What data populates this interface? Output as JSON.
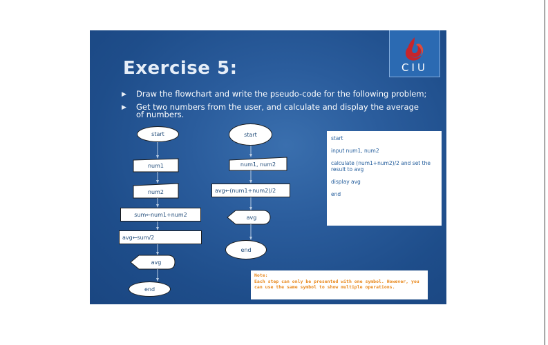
{
  "slide": {
    "title": "Exercise 5:",
    "logo_text": "CIU",
    "bullets": [
      "Draw the flowchart and write the pseudo-code for the following problem;",
      "Get two numbers from the user, and calculate and display the average of numbers."
    ]
  },
  "flowchart_left": {
    "start": "start",
    "input1": "num1",
    "input2": "num2",
    "process1": "sum←num1+num2",
    "process2": "avg←sum/2",
    "output": "avg",
    "end": "end"
  },
  "flowchart_middle": {
    "start": "start",
    "input": "num1, num2",
    "process": "avg←(num1+num2)/2",
    "output": "avg",
    "end": "end"
  },
  "pseudocode": {
    "lines": [
      "start",
      "input num1, num2",
      "calculate (num1+num2)/2 and set the result to avg",
      "display avg",
      "end"
    ]
  },
  "note": {
    "label": "Note:",
    "text": "Each step can only be presented with one symbol. However, you can use the same symbol to show multiple operations."
  },
  "colors": {
    "slide_background": "#1f4f8c",
    "title": "#e6eef8",
    "note_text": "#e8871a",
    "logo_background": "#2b6ab2",
    "logo_mark": "#c6252b"
  }
}
